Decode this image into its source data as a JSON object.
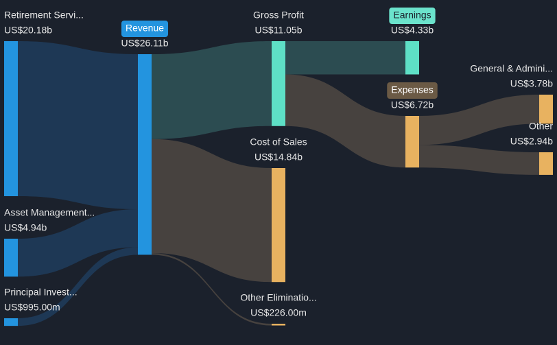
{
  "chart_data": {
    "type": "sankey",
    "nodes": [
      {
        "name": "Retirement Servi...",
        "value": 20.18,
        "value_label": "US$20.18b",
        "color": "#2394df"
      },
      {
        "name": "Asset Management...",
        "value": 4.94,
        "value_label": "US$4.94b",
        "color": "#2394df"
      },
      {
        "name": "Principal Invest...",
        "value": 0.995,
        "value_label": "US$995.00m",
        "color": "#2394df"
      },
      {
        "name": "Revenue",
        "value": 26.11,
        "value_label": "US$26.11b",
        "color": "#2394df"
      },
      {
        "name": "Gross Profit",
        "value": 11.05,
        "value_label": "US$11.05b",
        "color": "#5ee0c6"
      },
      {
        "name": "Cost of Sales",
        "value": 14.84,
        "value_label": "US$14.84b",
        "color": "#e8b260"
      },
      {
        "name": "Other Eliminatio...",
        "value": 0.226,
        "value_label": "US$226.00m",
        "color": "#e8b260"
      },
      {
        "name": "Earnings",
        "value": 4.33,
        "value_label": "US$4.33b",
        "color": "#5ee0c6"
      },
      {
        "name": "Expenses",
        "value": 6.72,
        "value_label": "US$6.72b",
        "color": "#e8b260"
      },
      {
        "name": "General & Admini...",
        "value": 3.78,
        "value_label": "US$3.78b",
        "color": "#e8b260"
      },
      {
        "name": "Other",
        "value": 2.94,
        "value_label": "US$2.94b",
        "color": "#e8b260"
      }
    ],
    "links": [
      {
        "source": "Retirement Servi...",
        "target": "Revenue",
        "value": 20.18,
        "color": "#1f3a57"
      },
      {
        "source": "Asset Management...",
        "target": "Revenue",
        "value": 4.94,
        "color": "#1f3a57"
      },
      {
        "source": "Principal Invest...",
        "target": "Revenue",
        "value": 0.995,
        "color": "#1f3a57"
      },
      {
        "source": "Revenue",
        "target": "Gross Profit",
        "value": 11.05,
        "color": "#2d4f53"
      },
      {
        "source": "Revenue",
        "target": "Cost of Sales",
        "value": 14.84,
        "color": "#4a4540"
      },
      {
        "source": "Revenue",
        "target": "Other Eliminatio...",
        "value": 0.226,
        "color": "#4a4540"
      },
      {
        "source": "Gross Profit",
        "target": "Earnings",
        "value": 4.33,
        "color": "#2d4f53"
      },
      {
        "source": "Gross Profit",
        "target": "Expenses",
        "value": 6.72,
        "color": "#4a4540"
      },
      {
        "source": "Expenses",
        "target": "General & Admini...",
        "value": 3.78,
        "color": "#4a4540"
      },
      {
        "source": "Expenses",
        "target": "Other",
        "value": 2.94,
        "color": "#4a4540"
      }
    ]
  }
}
